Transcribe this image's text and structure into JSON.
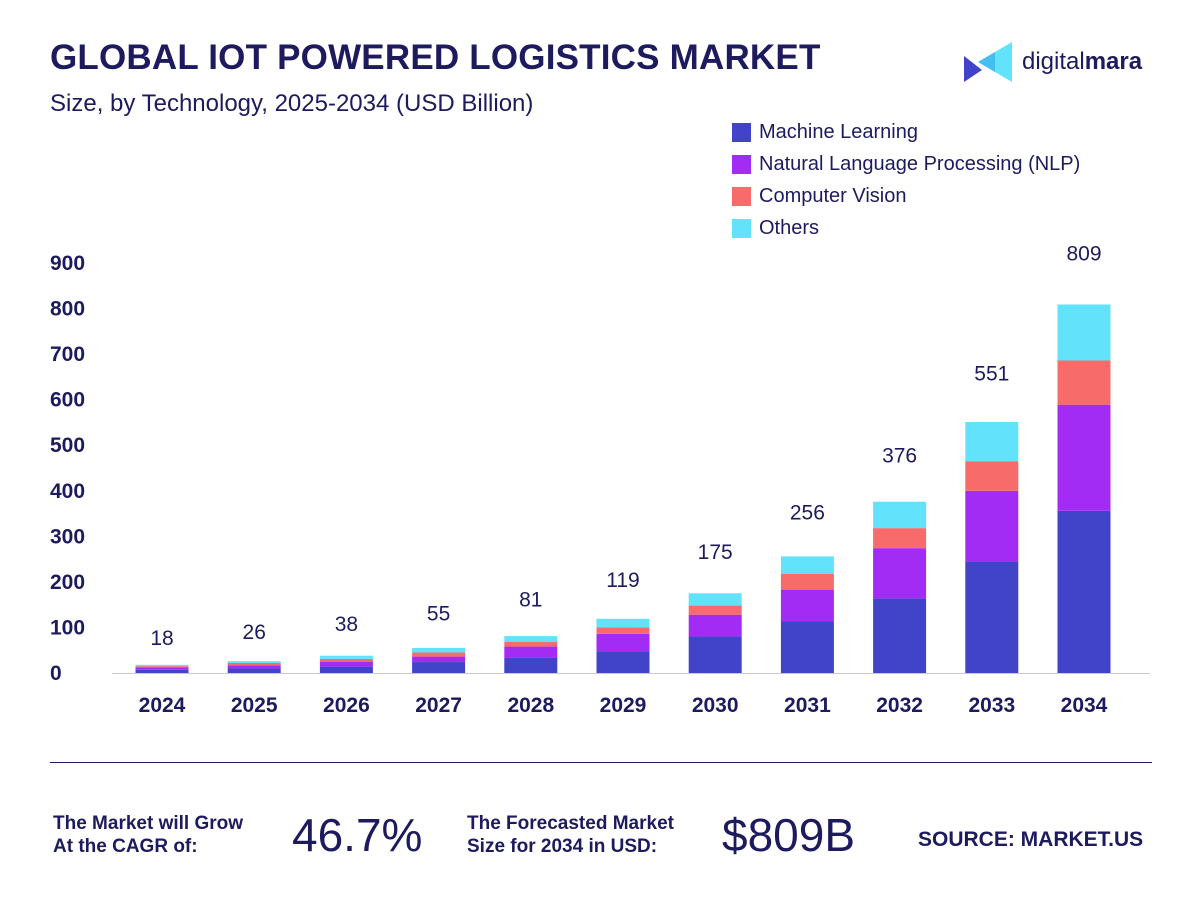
{
  "header": {
    "title": "GLOBAL IOT POWERED LOGISTICS MARKET",
    "subtitle": "Size, by Technology, 2025-2034 (USD Billion)"
  },
  "logo": {
    "text_light": "digital",
    "text_bold": "mara",
    "icon": "play-triangle-icon"
  },
  "chart_data": {
    "type": "bar",
    "stacked": true,
    "categories": [
      "2024",
      "2025",
      "2026",
      "2027",
      "2028",
      "2029",
      "2030",
      "2031",
      "2032",
      "2033",
      "2034"
    ],
    "series": [
      {
        "name": "Machine Learning",
        "color": "#4144c8",
        "values": [
          7,
          10,
          14,
          24,
          33,
          48,
          80,
          113,
          164,
          245,
          356
        ]
      },
      {
        "name": "Natural Language Processing (NLP)",
        "color": "#a32cf5",
        "values": [
          5,
          7,
          11,
          12,
          25,
          38,
          48,
          70,
          110,
          155,
          233
        ]
      },
      {
        "name": "Computer Vision",
        "color": "#f76b6b",
        "values": [
          3,
          5,
          6,
          9,
          10,
          14,
          20,
          35,
          44,
          65,
          97
        ]
      },
      {
        "name": "Others",
        "color": "#63e3fb",
        "values": [
          3,
          4,
          7,
          10,
          13,
          19,
          27,
          38,
          58,
          86,
          123
        ]
      }
    ],
    "totals": [
      18,
      26,
      38,
      55,
      81,
      119,
      175,
      256,
      376,
      551,
      809
    ],
    "ylim": [
      0,
      900
    ],
    "yticks": [
      "0",
      "100",
      "200",
      "300",
      "400",
      "500",
      "600",
      "700",
      "800",
      "900"
    ],
    "grid": false,
    "legend_position": "top-right"
  },
  "footer": {
    "cagr_label_line1": "The Market will Grow",
    "cagr_label_line2": "At the CAGR of:",
    "cagr_value": "46.7%",
    "forecast_label_line1": "The Forecasted Market",
    "forecast_label_line2": "Size for 2034 in USD:",
    "forecast_value": "$809B",
    "source": "SOURCE: MARKET.US"
  }
}
